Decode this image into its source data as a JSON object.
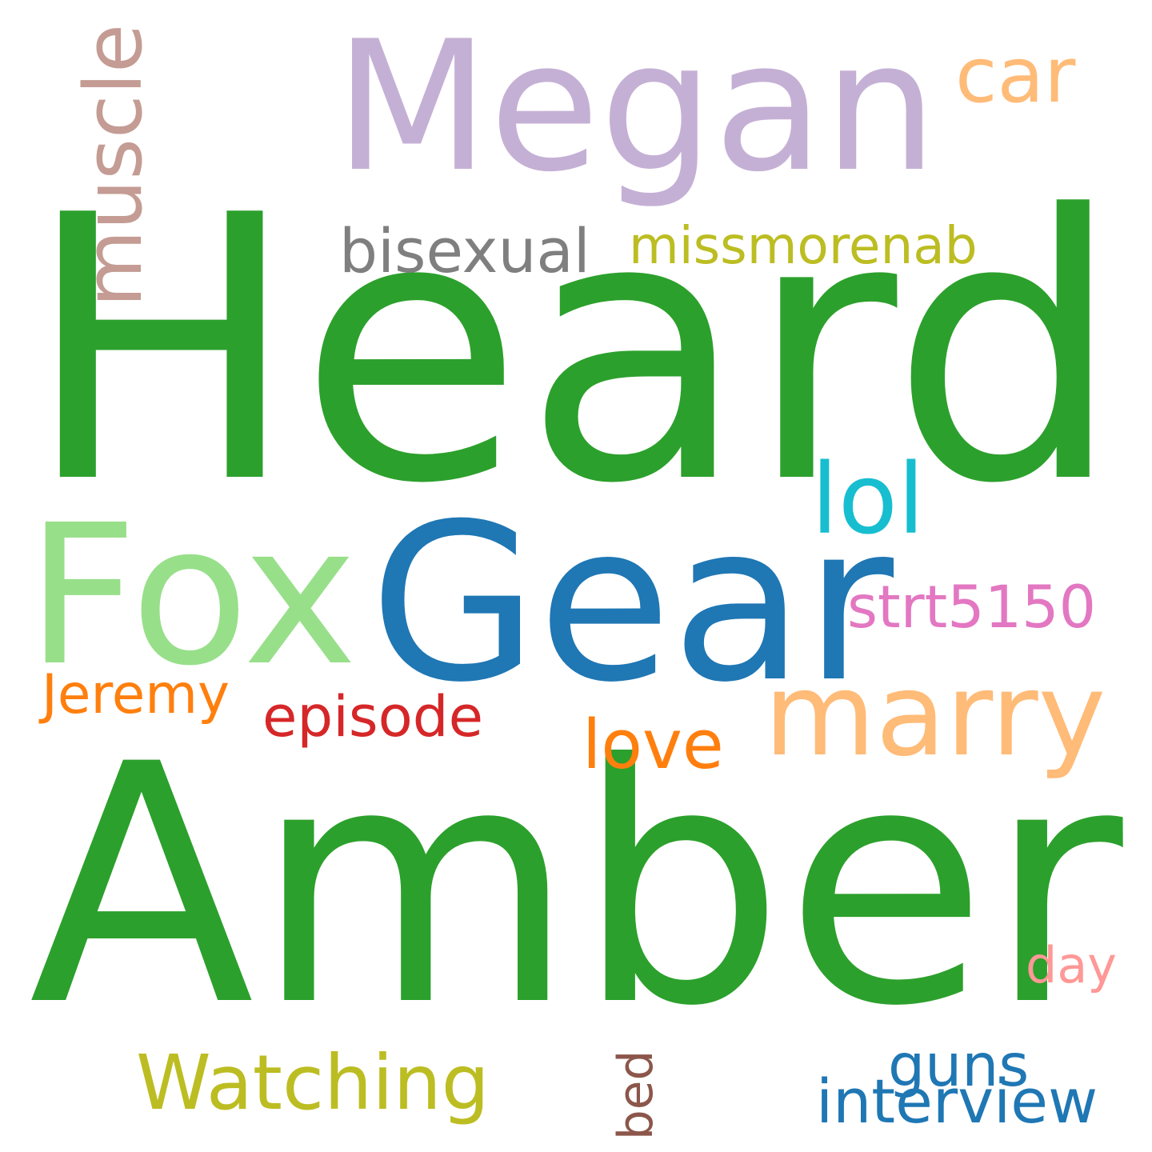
{
  "words": [
    {
      "text": "Heard",
      "color": "#2ca02c"
    },
    {
      "text": "Amber",
      "color": "#2ca02c"
    },
    {
      "text": "Megan",
      "color": "#c5b0d5"
    },
    {
      "text": "Gear",
      "color": "#1f77b4"
    },
    {
      "text": "Fox",
      "color": "#98df8a"
    },
    {
      "text": "marry",
      "color": "#ffbb78"
    },
    {
      "text": "muscle",
      "color": "#c49c94"
    },
    {
      "text": "car",
      "color": "#ffbb78"
    },
    {
      "text": "Watching",
      "color": "#bcbd22"
    },
    {
      "text": "bisexual",
      "color": "#7f7f7f"
    },
    {
      "text": "missmorenab",
      "color": "#bcbd22"
    },
    {
      "text": "lol",
      "color": "#17becf"
    },
    {
      "text": "strt5150",
      "color": "#e377c2"
    },
    {
      "text": "Jeremy",
      "color": "#ff7f0e"
    },
    {
      "text": "episode",
      "color": "#d62728"
    },
    {
      "text": "love",
      "color": "#ff7f0e"
    },
    {
      "text": "guns",
      "color": "#1f77b4"
    },
    {
      "text": "interview",
      "color": "#1f77b4"
    },
    {
      "text": "day",
      "color": "#ff9896"
    },
    {
      "text": "bed",
      "color": "#8c564b"
    }
  ]
}
